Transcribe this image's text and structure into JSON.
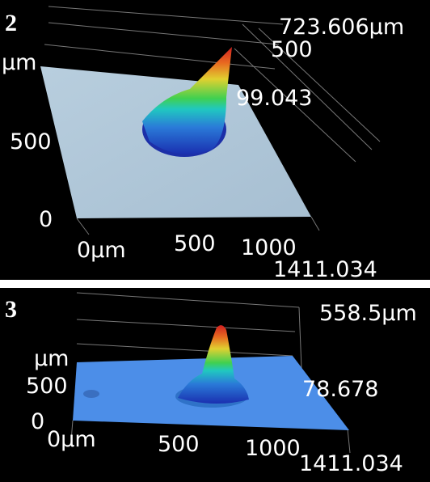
{
  "panels": [
    {
      "number": "2",
      "texts": [
        "723.606µm",
        "500",
        "µm",
        "99.043",
        "500",
        "0",
        "0µm",
        "500",
        "1000",
        "1411.034"
      ]
    },
    {
      "number": "3",
      "texts": [
        "558.5µm",
        "µm",
        "500",
        "78.678",
        "0",
        "0µm",
        "500",
        "1000",
        "1411.034"
      ]
    }
  ]
}
